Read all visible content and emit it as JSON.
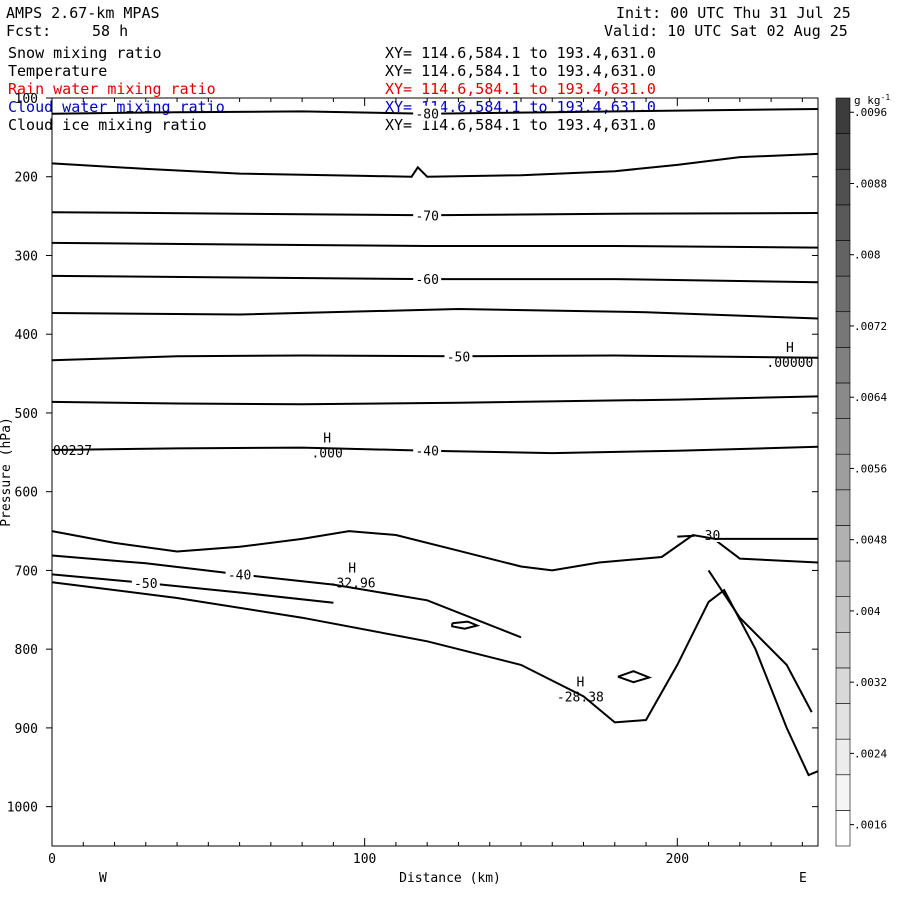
{
  "header": {
    "model": "AMPS 2.67-km MPAS",
    "init": "Init: 00 UTC Thu 31 Jul 25",
    "fcst_label": "Fcst:",
    "fcst_value": "58 h",
    "valid": "Valid: 10 UTC Sat 02 Aug 25"
  },
  "fields": [
    {
      "name": "Snow mixing ratio",
      "xy": "XY= 114.6,584.1 to 193.4,631.0",
      "color": "#000000"
    },
    {
      "name": "Temperature",
      "xy": "XY= 114.6,584.1 to 193.4,631.0",
      "color": "#000000"
    },
    {
      "name": "Rain water mixing ratio",
      "xy": "XY= 114.6,584.1 to 193.4,631.0",
      "color": "#e00000"
    },
    {
      "name": "Cloud water mixing ratio",
      "xy": "XY= 114.6,584.1 to 193.4,631.0",
      "color": "#0000c8"
    },
    {
      "name": "Cloud ice mixing ratio",
      "xy": "XY= 114.6,584.1 to 193.4,631.0",
      "color": "#000000"
    }
  ],
  "chart_data": {
    "type": "contour",
    "xlabel": "Distance (km)",
    "ylabel": "Pressure (hPa)",
    "x_left_label": "W",
    "x_right_label": "E",
    "xlim": [
      0,
      245
    ],
    "ylim": [
      1050,
      100
    ],
    "x_ticks": [
      0,
      100,
      200
    ],
    "y_ticks": [
      100,
      200,
      300,
      400,
      500,
      600,
      700,
      800,
      900,
      1000
    ],
    "temperature_contours": [
      {
        "label": "-80",
        "points": [
          [
            0,
            120
          ],
          [
            40,
            118
          ],
          [
            80,
            117
          ],
          [
            120,
            120
          ],
          [
            160,
            118
          ],
          [
            200,
            116
          ],
          [
            245,
            114
          ]
        ]
      },
      {
        "label": "",
        "points": [
          [
            0,
            183
          ],
          [
            30,
            190
          ],
          [
            60,
            196
          ],
          [
            100,
            199
          ],
          [
            115,
            200
          ],
          [
            117,
            188
          ],
          [
            120,
            200
          ],
          [
            150,
            198
          ],
          [
            180,
            193
          ],
          [
            200,
            185
          ],
          [
            220,
            175
          ],
          [
            245,
            171
          ]
        ]
      },
      {
        "label": "-70",
        "points": [
          [
            0,
            245
          ],
          [
            60,
            247
          ],
          [
            120,
            249
          ],
          [
            180,
            247
          ],
          [
            245,
            246
          ]
        ]
      },
      {
        "label": "",
        "points": [
          [
            0,
            284
          ],
          [
            60,
            286
          ],
          [
            120,
            288
          ],
          [
            180,
            288
          ],
          [
            245,
            290
          ]
        ]
      },
      {
        "label": "-60",
        "points": [
          [
            0,
            326
          ],
          [
            60,
            328
          ],
          [
            120,
            330
          ],
          [
            180,
            330
          ],
          [
            245,
            334
          ]
        ]
      },
      {
        "label": "",
        "points": [
          [
            0,
            373
          ],
          [
            60,
            375
          ],
          [
            130,
            368
          ],
          [
            190,
            372
          ],
          [
            245,
            380
          ]
        ]
      },
      {
        "label": "-50",
        "points": [
          [
            0,
            433
          ],
          [
            40,
            428
          ],
          [
            80,
            427
          ],
          [
            130,
            428
          ],
          [
            180,
            427
          ],
          [
            245,
            430
          ]
        ]
      },
      {
        "label": "",
        "points": [
          [
            0,
            486
          ],
          [
            40,
            488
          ],
          [
            80,
            489
          ],
          [
            130,
            487
          ],
          [
            200,
            483
          ],
          [
            245,
            479
          ]
        ]
      },
      {
        "label": "-40",
        "points": [
          [
            0,
            547
          ],
          [
            40,
            545
          ],
          [
            80,
            544
          ],
          [
            120,
            548
          ],
          [
            160,
            551
          ],
          [
            200,
            548
          ],
          [
            245,
            543
          ]
        ]
      },
      {
        "label": "-40",
        "points": [
          [
            0,
            681
          ],
          [
            30,
            691
          ],
          [
            60,
            705
          ],
          [
            90,
            718
          ],
          [
            120,
            738
          ],
          [
            150,
            785
          ]
        ]
      },
      {
        "label": "-50",
        "points": [
          [
            0,
            705
          ],
          [
            30,
            716
          ],
          [
            60,
            728
          ],
          [
            90,
            741
          ]
        ]
      },
      {
        "label": "-30",
        "points": [
          [
            200,
            657
          ],
          [
            210,
            655
          ],
          [
            220,
            685
          ],
          [
            245,
            690
          ]
        ]
      }
    ],
    "highs": [
      {
        "label": "H",
        "value": ".000",
        "x": 88,
        "p": 545
      },
      {
        "label": "H",
        "value": ".00000",
        "x": 236,
        "p": 430
      },
      {
        "label": "H",
        "value": "-32.96",
        "x": 96,
        "p": 710
      },
      {
        "label": "H",
        "value": "-28.38",
        "x": 169,
        "p": 855
      }
    ],
    "edge_label": "00237",
    "colorbar": {
      "unit": "g kg",
      "unit_sup": "-1",
      "ticks": [
        ".0096",
        ".0088",
        ".008",
        ".0072",
        ".0064",
        ".0056",
        ".0048",
        ".004",
        ".0032",
        ".0024",
        ".0016"
      ],
      "levels": [
        0.0016,
        0.002,
        0.0024,
        0.0028,
        0.0032,
        0.0036,
        0.004,
        0.0044,
        0.0048,
        0.0052,
        0.0056,
        0.006,
        0.0064,
        0.0068,
        0.0072,
        0.0076,
        0.008,
        0.0084,
        0.0088,
        0.0092,
        0.0096,
        0.01
      ]
    }
  }
}
